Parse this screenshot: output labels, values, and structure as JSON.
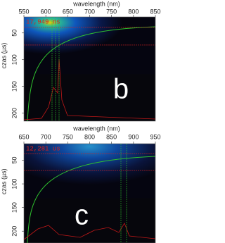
{
  "chart_data": [
    {
      "type": "heatmap",
      "x_label": "wavelength (nm)",
      "y_label": "czas (µs)",
      "annotation": "17,949 ns",
      "panel_label": "b",
      "xlim": [
        550,
        850
      ],
      "xticks": [
        550,
        600,
        650,
        700,
        750,
        800,
        850
      ],
      "ylim": [
        20,
        215
      ],
      "yticks": [
        50,
        100,
        150,
        200
      ]
    },
    {
      "type": "heatmap",
      "x_label": "wavelength (nm)",
      "y_label": "czas (µs)",
      "annotation": "12,281 us",
      "panel_label": "c",
      "xlim": [
        650,
        950
      ],
      "xticks": [
        650,
        700,
        750,
        800,
        850,
        900,
        950
      ],
      "ylim": [
        15,
        225
      ],
      "yticks": [
        50,
        100,
        150,
        200
      ]
    }
  ]
}
